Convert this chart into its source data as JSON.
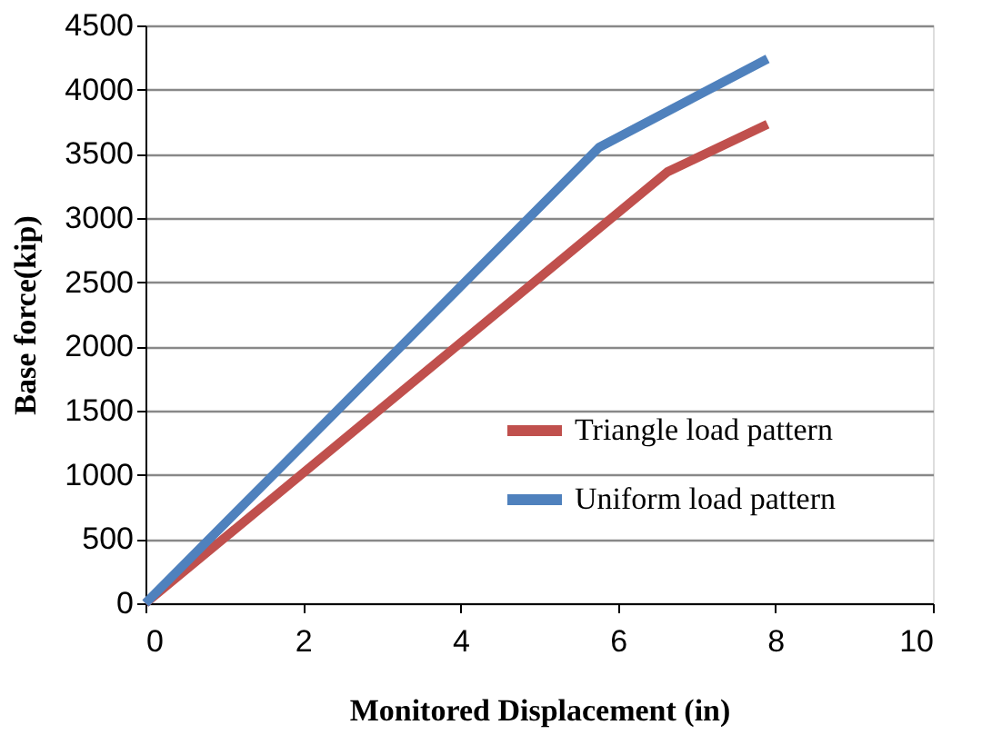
{
  "chart_data": {
    "type": "line",
    "xlabel": "Monitored  Displacement (in)",
    "ylabel": "Base force(kip)",
    "series": [
      {
        "name": "Triangle load pattern",
        "color": "#c0504d",
        "x": [
          0,
          6.63,
          7.9
        ],
        "values": [
          0,
          3360,
          3730
        ]
      },
      {
        "name": "Uniform load pattern",
        "color": "#4f81bd",
        "x": [
          0,
          5.76,
          7.9
        ],
        "values": [
          0,
          3550,
          4240
        ]
      }
    ],
    "xlim": [
      0,
      10
    ],
    "xticks": [
      0,
      2,
      4,
      6,
      8,
      10
    ],
    "ylim": [
      0,
      4500
    ],
    "yticks": [
      0,
      500,
      1000,
      1500,
      2000,
      2500,
      3000,
      3500,
      4000,
      4500
    ],
    "grid": "y",
    "legend": "right",
    "marker": "none",
    "line_style": "solid"
  }
}
